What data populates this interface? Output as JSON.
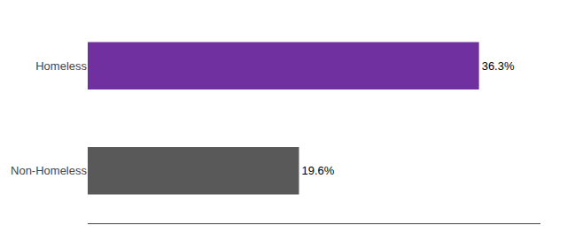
{
  "chart_data": {
    "type": "bar",
    "orientation": "horizontal",
    "categories": [
      "Non-Homeless",
      "Homeless"
    ],
    "values": [
      19.6,
      36.3
    ],
    "value_labels": [
      "19.6%",
      "36.3%"
    ],
    "data_labels": true,
    "colors": [
      "#595959",
      "#7030a0"
    ],
    "xlim": [
      0,
      42
    ],
    "xticks": [],
    "grid": false,
    "tick_labels": "y"
  }
}
